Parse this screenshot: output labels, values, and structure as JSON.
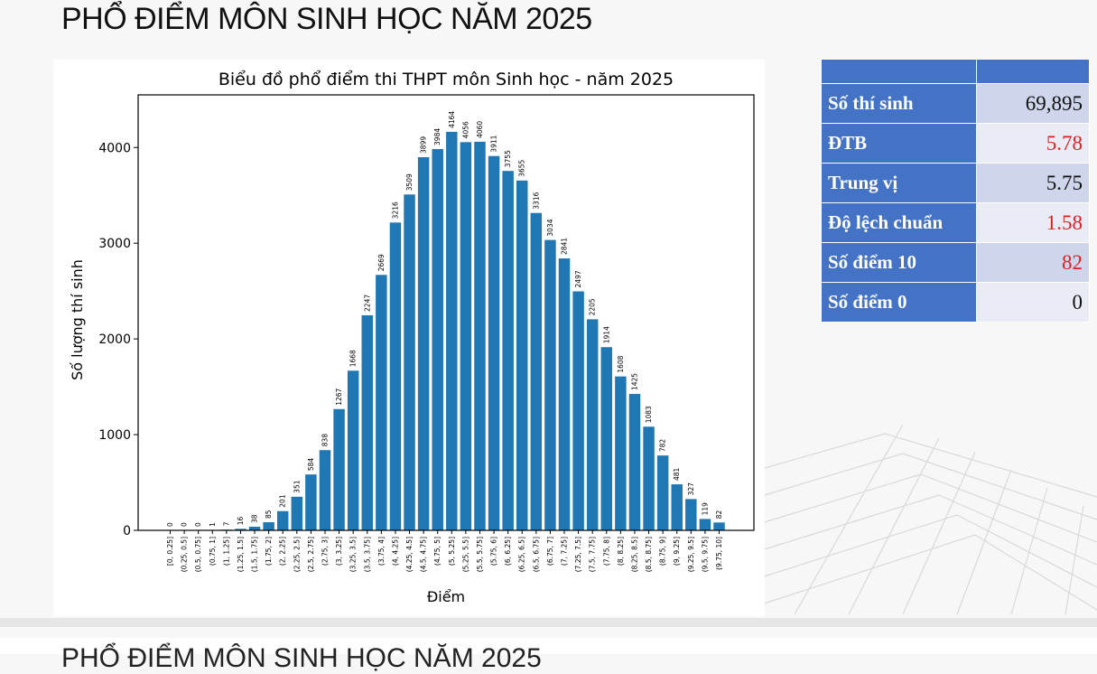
{
  "page": {
    "title": "PHỔ ĐIỂM MÔN SINH HỌC NĂM 2025",
    "next_section_title": "PHỔ ĐIỂM MÔN SINH HỌC NĂM 2025"
  },
  "stats": {
    "rows": [
      {
        "label": "Số thí sinh",
        "value": "69,895",
        "value_color": "#111111"
      },
      {
        "label": "ĐTB",
        "value": "5.78",
        "value_color": "#e02020"
      },
      {
        "label": "Trung vị",
        "value": "5.75",
        "value_color": "#111111"
      },
      {
        "label": "Độ lệch chuẩn",
        "value": "1.58",
        "value_color": "#e02020"
      },
      {
        "label": "Số điểm 10",
        "value": "82",
        "value_color": "#e02020"
      },
      {
        "label": "Số điểm 0",
        "value": "0",
        "value_color": "#111111"
      }
    ]
  },
  "chart_data": {
    "type": "bar",
    "title": "Biểu đồ phổ điểm thi THPT môn Sinh học - năm 2025",
    "xlabel": "Điểm",
    "ylabel": "Số lượng thí sinh",
    "ylim": [
      0,
      4550
    ],
    "yticks": [
      0,
      1000,
      2000,
      3000,
      4000
    ],
    "bar_color": "#1f77b4",
    "grid": false,
    "categories": [
      "[0, 0.25]",
      "(0.25, 0.5]",
      "(0.5, 0.75]",
      "(0.75, 1]",
      "(1, 1.25]",
      "(1.25, 1.5]",
      "(1.5, 1.75]",
      "(1.75, 2]",
      "(2, 2.25]",
      "(2.25, 2.5]",
      "(2.5, 2.75]",
      "(2.75, 3]",
      "(3, 3.25]",
      "(3.25, 3.5]",
      "(3.5, 3.75]",
      "(3.75, 4]",
      "(4, 4.25]",
      "(4.25, 4.5]",
      "(4.5, 4.75]",
      "(4.75, 5]",
      "(5, 5.25]",
      "(5.25, 5.5]",
      "(5.5, 5.75]",
      "(5.75, 6]",
      "(6, 6.25]",
      "(6.25, 6.5]",
      "(6.5, 6.75]",
      "(6.75, 7]",
      "(7, 7.25]",
      "(7.25, 7.5]",
      "(7.5, 7.75]",
      "(7.75, 8]",
      "(8, 8.25]",
      "(8.25, 8.5]",
      "(8.5, 8.75]",
      "(8.75, 9]",
      "(9, 9.25]",
      "(9.25, 9.5]",
      "(9.5, 9.75]",
      "(9.75, 10]"
    ],
    "values": [
      0,
      0,
      0,
      1,
      7,
      16,
      38,
      85,
      201,
      351,
      584,
      838,
      1267,
      1668,
      2247,
      2669,
      3216,
      3509,
      3899,
      3984,
      4164,
      4056,
      4060,
      3911,
      3755,
      3655,
      3316,
      3034,
      2841,
      2497,
      2205,
      1914,
      1608,
      1425,
      1083,
      782,
      481,
      327,
      119,
      82
    ]
  }
}
